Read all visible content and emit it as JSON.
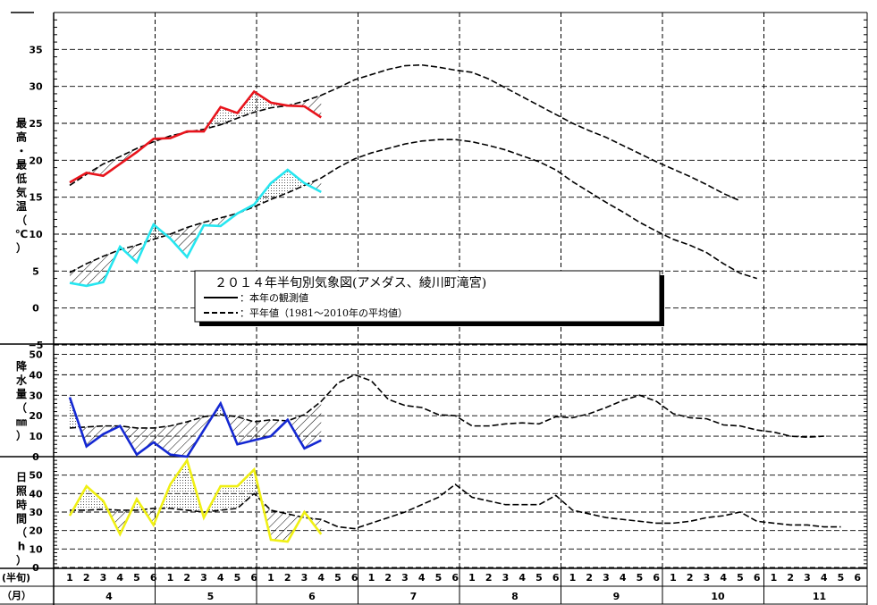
{
  "chart_data": {
    "type": "line",
    "title": "２０１４年半旬別気象図(アメダス、綾川町滝宮)",
    "legend": {
      "observed": "：本年の観測値",
      "normal": "：平年値（1981～2010年の平均値）"
    },
    "x_axis": {
      "pentad_row_label": "(半旬)",
      "month_row_label": "（月）",
      "pentads": [
        "1",
        "2",
        "3",
        "4",
        "5",
        "6"
      ],
      "months": [
        "4",
        "5",
        "6",
        "7",
        "8",
        "9",
        "10",
        "11"
      ]
    },
    "panels": [
      {
        "id": "temperature",
        "ylabel": "最高・最低気温（℃）",
        "ylim": [
          -5,
          40
        ],
        "yticks": [
          -5,
          0,
          5,
          10,
          15,
          20,
          25,
          30,
          35
        ],
        "series": [
          {
            "role": "max_normal",
            "style": "dashed",
            "color": "#000000",
            "values": [
              16.6,
              18.1,
              19.5,
              20.5,
              21.6,
              22.5,
              23.3,
              23.8,
              24.2,
              24.8,
              25.7,
              26.5,
              27.1,
              27.4,
              28.0,
              28.8,
              29.8,
              30.9,
              31.6,
              32.3,
              32.8,
              32.9,
              32.6,
              32.2,
              31.9,
              31.0,
              29.8,
              28.6,
              27.4,
              26.2,
              25.0,
              24.0,
              23.1,
              22.0,
              20.9,
              19.8,
              18.8,
              17.8,
              16.7,
              15.5,
              14.5
            ]
          },
          {
            "role": "max_observed",
            "style": "solid",
            "color": "#e8141c",
            "values": [
              17.0,
              18.3,
              17.9,
              19.5,
              21.1,
              22.9,
              23.0,
              23.9,
              23.9,
              27.2,
              26.4,
              29.3,
              27.8,
              27.4,
              27.3,
              25.8
            ]
          },
          {
            "role": "min_normal",
            "style": "dashed",
            "color": "#000000",
            "values": [
              4.8,
              6.0,
              7.0,
              7.9,
              8.5,
              9.3,
              10.0,
              10.9,
              11.6,
              12.2,
              12.8,
              13.7,
              14.7,
              15.6,
              16.6,
              17.6,
              19.0,
              20.2,
              21.0,
              21.6,
              22.2,
              22.6,
              22.8,
              22.8,
              22.5,
              22.0,
              21.4,
              20.6,
              19.8,
              18.7,
              17.1,
              15.7,
              14.3,
              13.0,
              11.6,
              10.4,
              9.3,
              8.5,
              7.5,
              6.0,
              4.7,
              4.0
            ]
          },
          {
            "role": "min_observed",
            "style": "solid",
            "color": "#26e6f0",
            "values": [
              3.4,
              3.0,
              3.5,
              8.3,
              6.2,
              11.3,
              9.4,
              6.9,
              11.2,
              11.1,
              12.8,
              14.0,
              16.9,
              18.7,
              16.9,
              15.7
            ]
          }
        ]
      },
      {
        "id": "precipitation",
        "ylabel": "降水量（㎜）",
        "ylim": [
          0,
          55
        ],
        "yticks": [
          0,
          10,
          20,
          30,
          40,
          50
        ],
        "series": [
          {
            "role": "normal",
            "style": "dashed",
            "color": "#000000",
            "values": [
              14,
              14.5,
              15,
              15,
              14,
              14,
              15,
              17,
              19.5,
              20.5,
              19.5,
              17,
              18,
              17.5,
              20.5,
              27,
              36,
              40,
              37,
              28,
              25,
              24,
              20.5,
              20,
              15,
              15,
              16,
              16.5,
              16,
              19.5,
              19,
              21,
              24,
              27.5,
              30,
              27,
              21,
              19,
              18.5,
              15.5,
              15,
              13,
              12,
              10,
              9.5,
              10
            ]
          },
          {
            "role": "observed",
            "style": "solid",
            "color": "#1428d2",
            "values": [
              29,
              5,
              11,
              15,
              1,
              7,
              1,
              0,
              13,
              26,
              6,
              8,
              10,
              18,
              4,
              8
            ]
          }
        ]
      },
      {
        "id": "sunshine",
        "ylabel": "日照時間（h）",
        "ylim": [
          0,
          60
        ],
        "yticks": [
          0,
          10,
          20,
          30,
          40,
          50
        ],
        "series": [
          {
            "role": "normal",
            "style": "dashed",
            "color": "#000000",
            "values": [
              31,
              31,
              31.5,
              31,
              31,
              32,
              32,
              31,
              30,
              31,
              32,
              40,
              31,
              29,
              27,
              26,
              22,
              21,
              24,
              27,
              30,
              34,
              38,
              45,
              38,
              36,
              34,
              34,
              34,
              39,
              31,
              29,
              27,
              26,
              25,
              24,
              24,
              25,
              27,
              28,
              30,
              25,
              24,
              23,
              23,
              22,
              22
            ]
          },
          {
            "role": "observed",
            "style": "solid",
            "color": "#f0f014",
            "values": [
              28,
              44,
              36,
              18,
              37,
              23,
              45,
              58,
              27,
              44,
              44,
              53,
              15,
              14,
              30,
              18
            ]
          }
        ]
      }
    ]
  }
}
